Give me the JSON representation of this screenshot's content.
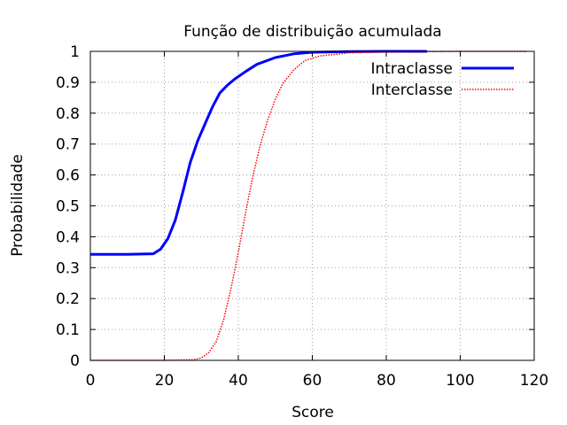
{
  "chart_data": {
    "type": "line",
    "title": "Função de distribuição acumulada",
    "xlabel": "Score",
    "ylabel": "Probabilidade",
    "xlim": [
      0,
      120
    ],
    "ylim": [
      0,
      1
    ],
    "xticks": [
      "0",
      "20",
      "40",
      "60",
      "80",
      "100",
      "120"
    ],
    "yticks": [
      "0",
      "0.1",
      "0.2",
      "0.3",
      "0.4",
      "0.5",
      "0.6",
      "0.7",
      "0.8",
      "0.9",
      "1"
    ],
    "grid": true,
    "legend_position": "top-right",
    "series": [
      {
        "name": "Intraclasse",
        "color": "#0000ff",
        "style": "solid",
        "x": [
          0,
          10,
          17,
          19,
          21,
          23,
          25,
          27,
          29,
          31,
          33,
          35,
          37,
          39,
          42,
          45,
          50,
          55,
          60,
          70,
          80,
          91
        ],
        "y": [
          0.343,
          0.343,
          0.345,
          0.36,
          0.395,
          0.455,
          0.545,
          0.64,
          0.71,
          0.765,
          0.82,
          0.865,
          0.89,
          0.91,
          0.935,
          0.958,
          0.98,
          0.992,
          0.997,
          0.999,
          1.0,
          1.0
        ]
      },
      {
        "name": "Interclasse",
        "color": "#ff0000",
        "style": "dotted",
        "x": [
          0,
          20,
          28,
          30,
          32,
          34,
          36,
          38,
          40,
          42,
          44,
          46,
          48,
          50,
          52,
          55,
          58,
          62,
          70,
          80,
          100,
          118
        ],
        "y": [
          0,
          0,
          0.002,
          0.008,
          0.025,
          0.06,
          0.13,
          0.23,
          0.35,
          0.48,
          0.6,
          0.7,
          0.78,
          0.845,
          0.895,
          0.94,
          0.97,
          0.985,
          0.995,
          0.998,
          1.0,
          1.0
        ]
      }
    ]
  }
}
